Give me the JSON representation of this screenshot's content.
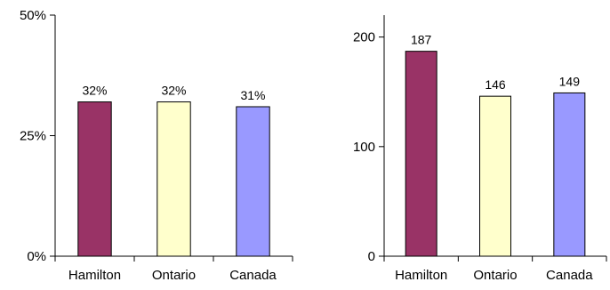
{
  "chart_data": [
    {
      "type": "bar",
      "categories": [
        "Hamilton",
        "Ontario",
        "Canada"
      ],
      "values": [
        32,
        32,
        31
      ],
      "value_labels": [
        "32%",
        "32%",
        "31%"
      ],
      "colors": [
        "#993366",
        "#FFFFCC",
        "#9999FF"
      ],
      "yticks": [
        0,
        25,
        50
      ],
      "ytick_labels": [
        "0%",
        "25%",
        "50%"
      ],
      "ylim": [
        0,
        50
      ],
      "grid": false,
      "title": "",
      "xlabel": "",
      "ylabel": ""
    },
    {
      "type": "bar",
      "categories": [
        "Hamilton",
        "Ontario",
        "Canada"
      ],
      "values": [
        187,
        146,
        149
      ],
      "value_labels": [
        "187",
        "146",
        "149"
      ],
      "colors": [
        "#993366",
        "#FFFFCC",
        "#9999FF"
      ],
      "yticks": [
        0,
        100,
        200
      ],
      "ytick_labels": [
        "0",
        "100",
        "200"
      ],
      "ylim": [
        0,
        220
      ],
      "grid": false,
      "title": "",
      "xlabel": "",
      "ylabel": ""
    }
  ]
}
